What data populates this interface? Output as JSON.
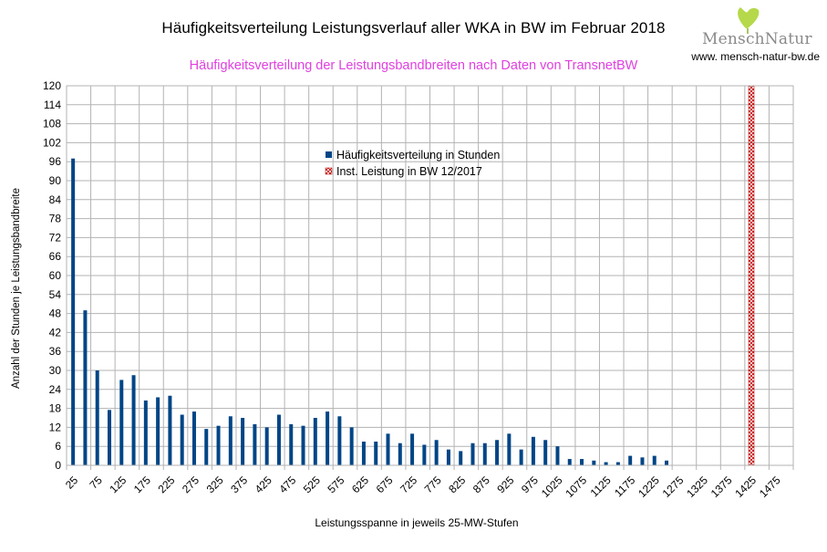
{
  "header": {
    "title": "Häufigkeitsverteilung Leistungsverlauf aller WKA in BW im Februar 2018",
    "subtitle": "Häufigkeitsverteilung der Leistungsbandbreiten nach Daten von TransnetBW",
    "logo_text": "MenschNatur",
    "website": "www. mensch-natur-bw.de"
  },
  "colors": {
    "bar": "#004586",
    "marker": "#c00000",
    "subtitle": "#e040e0",
    "grid": "#b3b3b3",
    "logo_leaf": "#b5d94a"
  },
  "chart_data": {
    "type": "bar",
    "title": "Häufigkeitsverteilung Leistungsverlauf aller WKA in BW im Februar 2018",
    "subtitle": "Häufigkeitsverteilung der Leistungsbandbreiten nach Daten von TransnetBW",
    "xlabel": "Leistungsspanne in jeweils 25-MW-Stufen",
    "ylabel": "Anzahl der Stunden je Leistungsbandbreite",
    "ylim": [
      0,
      120
    ],
    "yticks": [
      0,
      6,
      12,
      18,
      24,
      30,
      36,
      42,
      48,
      54,
      60,
      66,
      72,
      78,
      84,
      90,
      96,
      102,
      108,
      114,
      120
    ],
    "xtick_labels": [
      "25",
      "75",
      "125",
      "175",
      "225",
      "275",
      "325",
      "375",
      "425",
      "475",
      "525",
      "575",
      "625",
      "675",
      "725",
      "775",
      "825",
      "875",
      "925",
      "975",
      "1025",
      "1075",
      "1125",
      "1175",
      "1225",
      "1275",
      "1325",
      "1375",
      "1425",
      "1475"
    ],
    "categories": [
      "25",
      "50",
      "75",
      "100",
      "125",
      "150",
      "175",
      "200",
      "225",
      "250",
      "275",
      "300",
      "325",
      "350",
      "375",
      "400",
      "425",
      "450",
      "475",
      "500",
      "525",
      "550",
      "575",
      "600",
      "625",
      "650",
      "675",
      "700",
      "725",
      "750",
      "775",
      "800",
      "825",
      "850",
      "875",
      "900",
      "925",
      "950",
      "975",
      "1000",
      "1025",
      "1050",
      "1075",
      "1100",
      "1125",
      "1150",
      "1175",
      "1200",
      "1225",
      "1250",
      "1275",
      "1300",
      "1325",
      "1350",
      "1375",
      "1400",
      "1425",
      "1450",
      "1475"
    ],
    "series": [
      {
        "name": "Häufigkeitsverteilung in Stunden",
        "values": [
          97,
          49,
          30,
          17.5,
          27,
          28.5,
          20.5,
          21.5,
          22,
          16,
          17,
          11.5,
          12.5,
          15.5,
          15,
          13,
          12,
          16,
          13,
          12.5,
          15,
          17,
          15.5,
          12,
          7.5,
          7.5,
          10,
          7,
          10,
          6.5,
          8,
          5,
          4.5,
          7,
          7,
          8,
          10,
          5,
          9,
          8,
          6,
          2,
          2,
          1.5,
          1,
          1,
          3,
          2.5,
          3,
          1.5,
          0,
          0,
          0,
          0,
          0,
          0,
          0,
          0,
          0
        ]
      },
      {
        "name": "Inst. Leistung in BW 12/2017",
        "category": "1425",
        "value": 120
      }
    ],
    "legend_position": "top-center",
    "grid": true
  }
}
